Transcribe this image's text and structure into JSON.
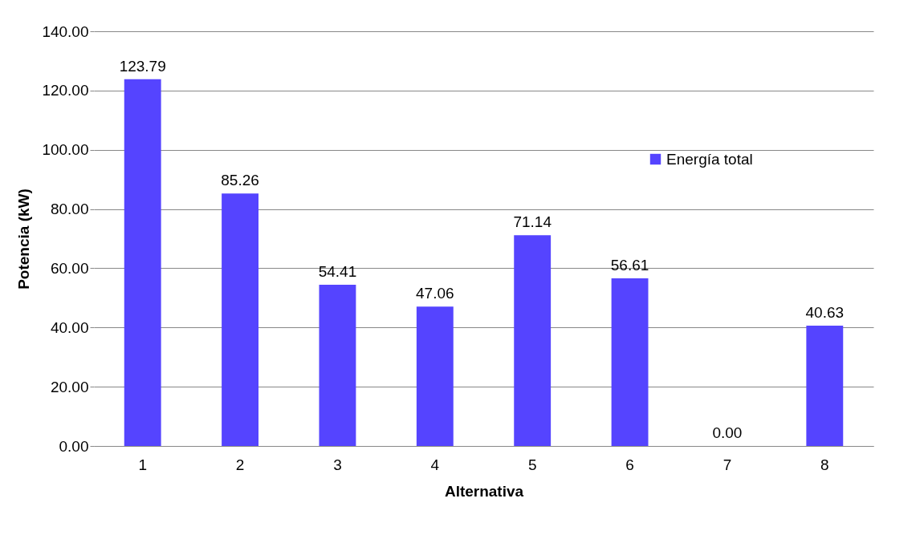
{
  "chart_data": {
    "type": "bar",
    "xlabel": "Alternativa",
    "ylabel": "Potencia (kW)",
    "categories": [
      "1",
      "2",
      "3",
      "4",
      "5",
      "6",
      "7",
      "8"
    ],
    "series": [
      {
        "name": "Energía total",
        "color": "#5544ff",
        "values": [
          123.79,
          85.26,
          54.41,
          47.06,
          71.14,
          56.61,
          0.0,
          40.63
        ],
        "value_labels": [
          "123.79",
          "85.26",
          "54.41",
          "47.06",
          "71.14",
          "56.61",
          "0.00",
          "40.63"
        ]
      }
    ],
    "ylim": [
      0,
      140
    ],
    "yticks": [
      {
        "value": 0,
        "label": "0.00"
      },
      {
        "value": 20,
        "label": "20.00"
      },
      {
        "value": 40,
        "label": "40.00"
      },
      {
        "value": 60,
        "label": "60.00"
      },
      {
        "value": 80,
        "label": "80.00"
      },
      {
        "value": 100,
        "label": "100.00"
      },
      {
        "value": 120,
        "label": "120.00"
      },
      {
        "value": 140,
        "label": "140.00"
      }
    ],
    "grid": "y",
    "legend": "top right"
  }
}
